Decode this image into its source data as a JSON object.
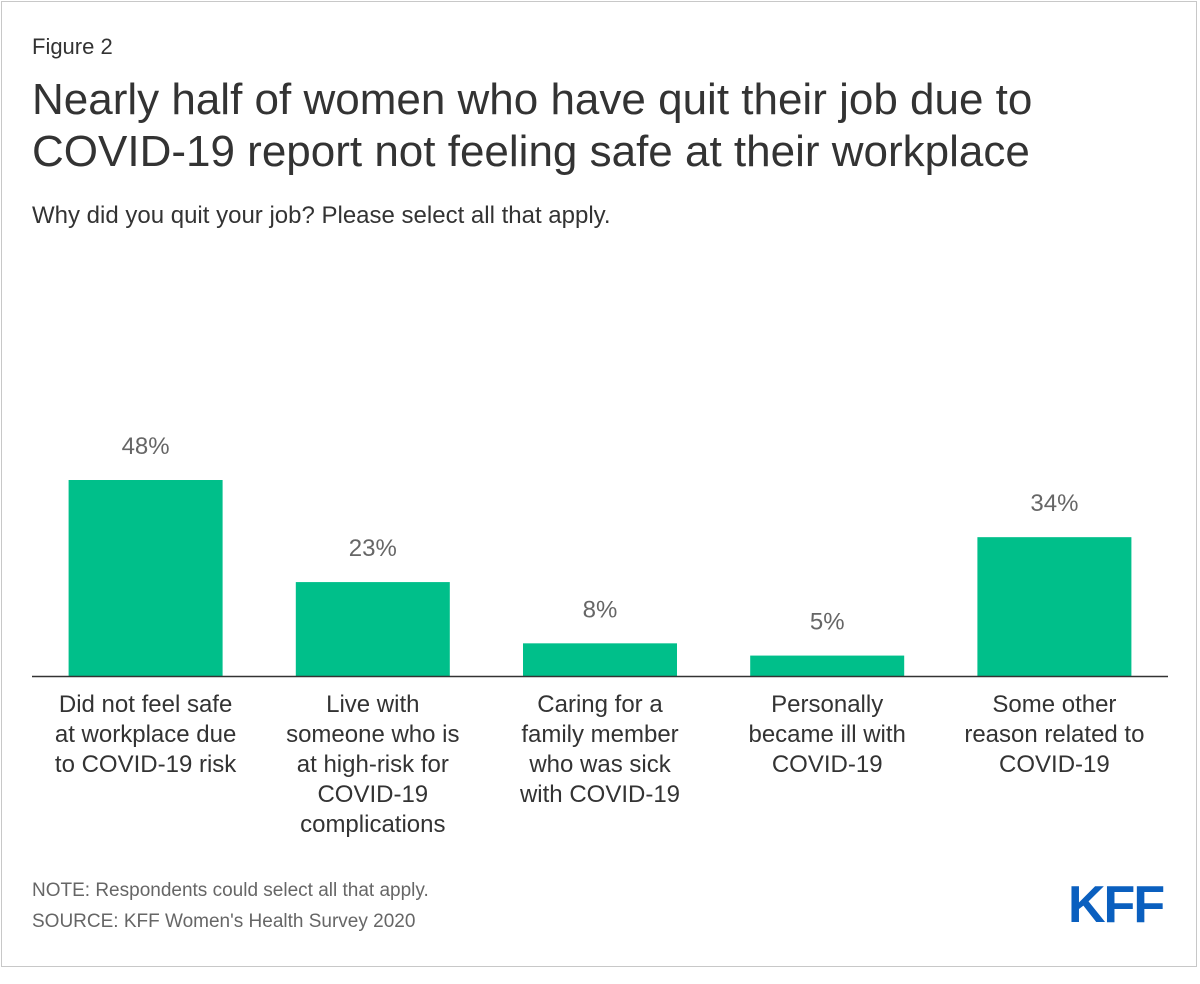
{
  "figure_label": "Figure 2",
  "title": "Nearly half of women who have quit their job due to COVID-19 report not feeling safe at their workplace",
  "subtitle": "Why did you quit your job? Please select all that apply.",
  "note": "NOTE: Respondents could select all that apply.",
  "source": "SOURCE: KFF Women's Health Survey 2020",
  "logo_text": "KFF",
  "colors": {
    "bar": "#00bf8a",
    "axis": "#333333",
    "logo": "#0a5fbf"
  },
  "chart_data": {
    "type": "bar",
    "title": "Nearly half of women who have quit their job due to COVID-19 report not feeling safe at their workplace",
    "xlabel": "",
    "ylabel": "",
    "ylim": [
      0,
      50
    ],
    "grid": false,
    "categories": [
      [
        "Did not feel safe",
        "at workplace due",
        "to COVID-19 risk"
      ],
      [
        "Live with",
        "someone who is",
        "at high-risk for",
        "COVID-19",
        "complications"
      ],
      [
        "Caring for a",
        "family member",
        "who was sick",
        "with COVID-19"
      ],
      [
        "Personally",
        "became ill with",
        "COVID-19"
      ],
      [
        "Some other",
        "reason related to",
        "COVID-19"
      ]
    ],
    "values": [
      48,
      23,
      8,
      5,
      34
    ],
    "value_labels": [
      "48%",
      "23%",
      "8%",
      "5%",
      "34%"
    ]
  }
}
